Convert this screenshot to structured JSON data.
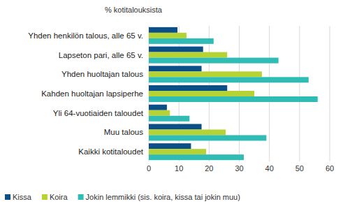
{
  "chart_data": {
    "type": "bar",
    "orientation": "horizontal",
    "x_label": "% kotitalouksista",
    "categories": [
      "Yhden henkilön talous, alle 65 v.",
      "Lapseton pari, alle 65 v.",
      "Yhden huoltajan talous",
      "Kahden huoltajan lapsiperhe",
      "Yli 64-vuotiaiden taloudet",
      "Muu talous",
      "Kaikki kotitaloudet"
    ],
    "series": [
      {
        "name": "Kissa",
        "color": "#0b4f89",
        "values": [
          9.5,
          18,
          17.5,
          26,
          6,
          17.5,
          14
        ]
      },
      {
        "name": "Koira",
        "color": "#b5d334",
        "values": [
          12.5,
          26,
          37.5,
          35,
          7,
          25.5,
          19
        ]
      },
      {
        "name": "Jokin lemmikki (sis. koira, kissa tai jokin muu)",
        "color": "#2ebcb5",
        "values": [
          21.5,
          43,
          53,
          56,
          13.5,
          39,
          31.5
        ]
      }
    ],
    "xlim": [
      0,
      60
    ],
    "xticks": [
      0,
      10,
      20,
      30,
      40,
      50,
      60
    ],
    "grid": true,
    "legend": "bottom"
  }
}
